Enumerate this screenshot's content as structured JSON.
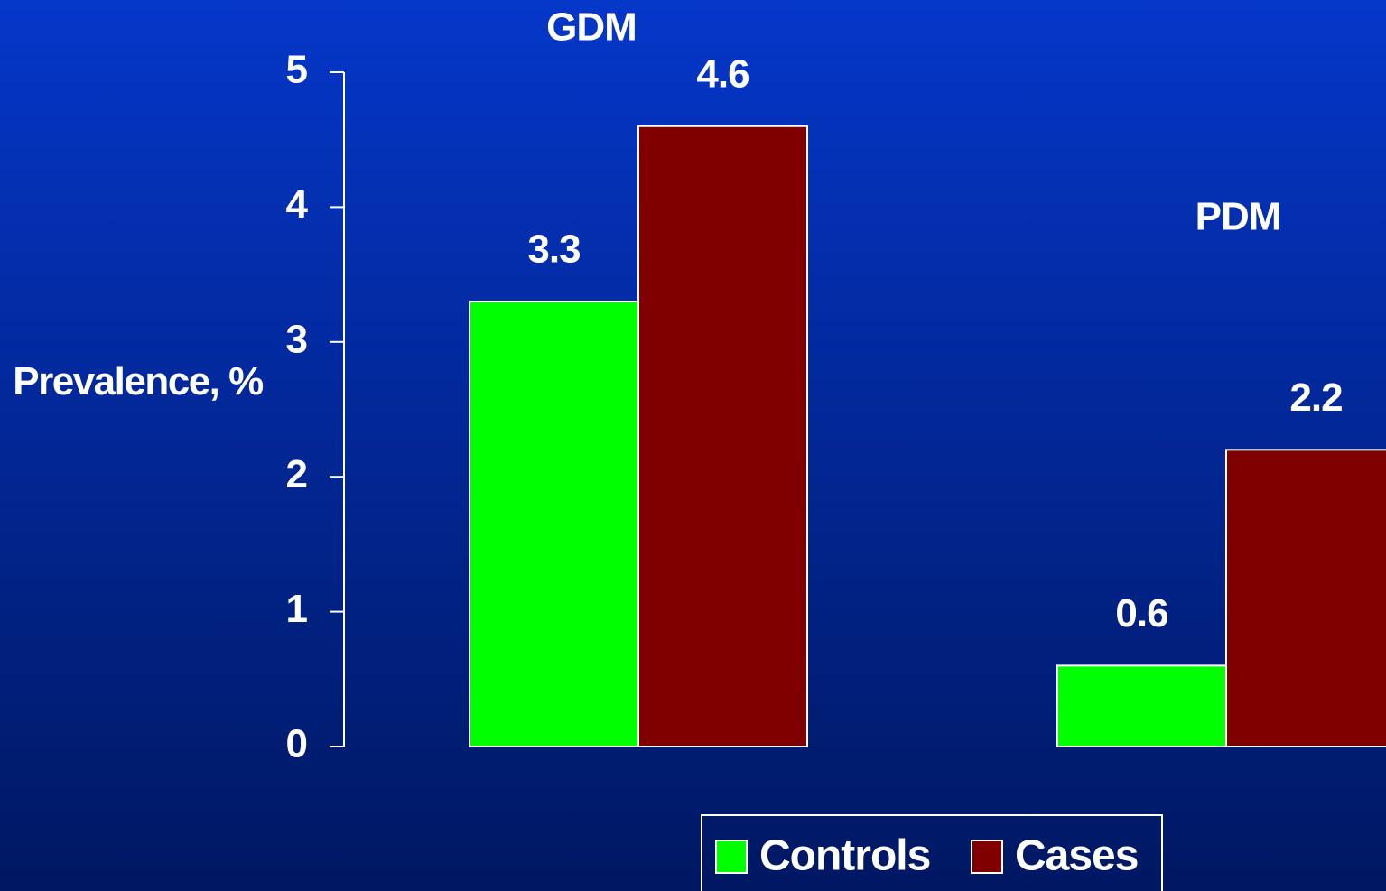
{
  "chart_data": {
    "type": "bar",
    "ylabel": "Prevalence, %",
    "categories": [
      "GDM",
      "PDM"
    ],
    "series": [
      {
        "name": "Controls",
        "color": "#00ff00",
        "values": [
          3.3,
          0.6
        ]
      },
      {
        "name": "Cases",
        "color": "#800000",
        "values": [
          4.6,
          2.2
        ]
      }
    ],
    "ylim": [
      0,
      5
    ],
    "yticks": [
      0,
      1,
      2,
      3,
      4,
      5
    ],
    "grid": false,
    "legend": "bottom"
  }
}
